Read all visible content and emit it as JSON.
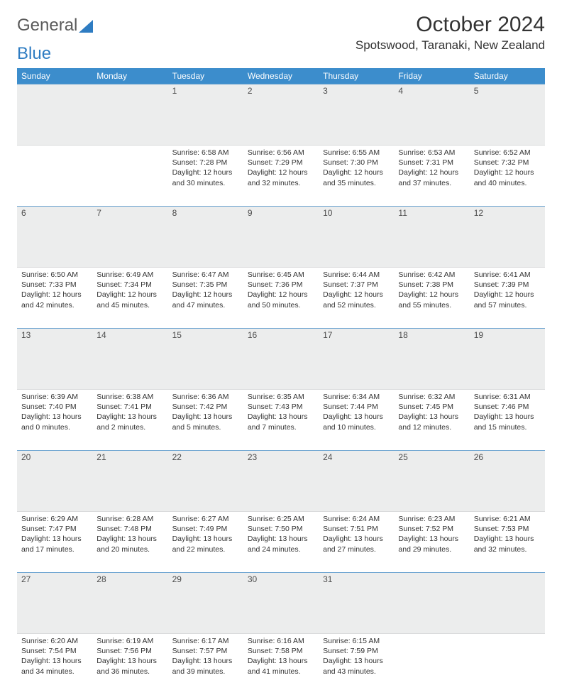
{
  "logo": {
    "text_a": "General",
    "text_b": "Blue"
  },
  "title": "October 2024",
  "location": "Spotswood, Taranaki, New Zealand",
  "colors": {
    "header_bg": "#3c8dcc",
    "header_text": "#ffffff",
    "daynum_bg": "#eceded",
    "rule": "#6aa3d0",
    "text": "#333333"
  },
  "day_names": [
    "Sunday",
    "Monday",
    "Tuesday",
    "Wednesday",
    "Thursday",
    "Friday",
    "Saturday"
  ],
  "leading_blanks": 2,
  "days": [
    {
      "n": 1,
      "sr": "6:58 AM",
      "ss": "7:28 PM",
      "dl": "12 hours and 30 minutes."
    },
    {
      "n": 2,
      "sr": "6:56 AM",
      "ss": "7:29 PM",
      "dl": "12 hours and 32 minutes."
    },
    {
      "n": 3,
      "sr": "6:55 AM",
      "ss": "7:30 PM",
      "dl": "12 hours and 35 minutes."
    },
    {
      "n": 4,
      "sr": "6:53 AM",
      "ss": "7:31 PM",
      "dl": "12 hours and 37 minutes."
    },
    {
      "n": 5,
      "sr": "6:52 AM",
      "ss": "7:32 PM",
      "dl": "12 hours and 40 minutes."
    },
    {
      "n": 6,
      "sr": "6:50 AM",
      "ss": "7:33 PM",
      "dl": "12 hours and 42 minutes."
    },
    {
      "n": 7,
      "sr": "6:49 AM",
      "ss": "7:34 PM",
      "dl": "12 hours and 45 minutes."
    },
    {
      "n": 8,
      "sr": "6:47 AM",
      "ss": "7:35 PM",
      "dl": "12 hours and 47 minutes."
    },
    {
      "n": 9,
      "sr": "6:45 AM",
      "ss": "7:36 PM",
      "dl": "12 hours and 50 minutes."
    },
    {
      "n": 10,
      "sr": "6:44 AM",
      "ss": "7:37 PM",
      "dl": "12 hours and 52 minutes."
    },
    {
      "n": 11,
      "sr": "6:42 AM",
      "ss": "7:38 PM",
      "dl": "12 hours and 55 minutes."
    },
    {
      "n": 12,
      "sr": "6:41 AM",
      "ss": "7:39 PM",
      "dl": "12 hours and 57 minutes."
    },
    {
      "n": 13,
      "sr": "6:39 AM",
      "ss": "7:40 PM",
      "dl": "13 hours and 0 minutes."
    },
    {
      "n": 14,
      "sr": "6:38 AM",
      "ss": "7:41 PM",
      "dl": "13 hours and 2 minutes."
    },
    {
      "n": 15,
      "sr": "6:36 AM",
      "ss": "7:42 PM",
      "dl": "13 hours and 5 minutes."
    },
    {
      "n": 16,
      "sr": "6:35 AM",
      "ss": "7:43 PM",
      "dl": "13 hours and 7 minutes."
    },
    {
      "n": 17,
      "sr": "6:34 AM",
      "ss": "7:44 PM",
      "dl": "13 hours and 10 minutes."
    },
    {
      "n": 18,
      "sr": "6:32 AM",
      "ss": "7:45 PM",
      "dl": "13 hours and 12 minutes."
    },
    {
      "n": 19,
      "sr": "6:31 AM",
      "ss": "7:46 PM",
      "dl": "13 hours and 15 minutes."
    },
    {
      "n": 20,
      "sr": "6:29 AM",
      "ss": "7:47 PM",
      "dl": "13 hours and 17 minutes."
    },
    {
      "n": 21,
      "sr": "6:28 AM",
      "ss": "7:48 PM",
      "dl": "13 hours and 20 minutes."
    },
    {
      "n": 22,
      "sr": "6:27 AM",
      "ss": "7:49 PM",
      "dl": "13 hours and 22 minutes."
    },
    {
      "n": 23,
      "sr": "6:25 AM",
      "ss": "7:50 PM",
      "dl": "13 hours and 24 minutes."
    },
    {
      "n": 24,
      "sr": "6:24 AM",
      "ss": "7:51 PM",
      "dl": "13 hours and 27 minutes."
    },
    {
      "n": 25,
      "sr": "6:23 AM",
      "ss": "7:52 PM",
      "dl": "13 hours and 29 minutes."
    },
    {
      "n": 26,
      "sr": "6:21 AM",
      "ss": "7:53 PM",
      "dl": "13 hours and 32 minutes."
    },
    {
      "n": 27,
      "sr": "6:20 AM",
      "ss": "7:54 PM",
      "dl": "13 hours and 34 minutes."
    },
    {
      "n": 28,
      "sr": "6:19 AM",
      "ss": "7:56 PM",
      "dl": "13 hours and 36 minutes."
    },
    {
      "n": 29,
      "sr": "6:17 AM",
      "ss": "7:57 PM",
      "dl": "13 hours and 39 minutes."
    },
    {
      "n": 30,
      "sr": "6:16 AM",
      "ss": "7:58 PM",
      "dl": "13 hours and 41 minutes."
    },
    {
      "n": 31,
      "sr": "6:15 AM",
      "ss": "7:59 PM",
      "dl": "13 hours and 43 minutes."
    }
  ],
  "labels": {
    "sunrise": "Sunrise:",
    "sunset": "Sunset:",
    "daylight": "Daylight:"
  }
}
